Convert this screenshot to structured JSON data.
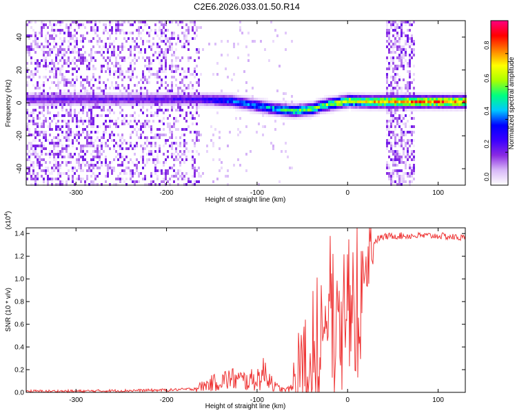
{
  "title": "C2E6.2026.033.01.50.R14",
  "chart_data": [
    {
      "type": "heatmap",
      "xlabel": "Height of straight line (km)",
      "ylabel": "Frequency (Hz)",
      "xlim": [
        -355,
        130
      ],
      "ylim": [
        -50,
        50
      ],
      "xticks": [
        -300,
        -200,
        -100,
        0,
        100
      ],
      "yticks": [
        -40,
        -20,
        0,
        20,
        40
      ],
      "colorbar": {
        "label": "Normalized spectral amplitude",
        "range": [
          0,
          1
        ],
        "ticks": [
          "0.0",
          "0.2",
          "0.4",
          "0.6",
          "0.8"
        ],
        "tick_values": [
          0,
          0.2,
          0.4,
          0.6,
          0.8
        ],
        "colors": [
          "#ffffff",
          "#d8b8f8",
          "#8a2be2",
          "#3b00ff",
          "#0000ff",
          "#00c8ff",
          "#00ff80",
          "#aaff00",
          "#ffff00",
          "#ff8000",
          "#ff0000",
          "#ff0080"
        ]
      },
      "signal_band": {
        "description_free": true,
        "noise_region_x": [
          -355,
          -165
        ],
        "clean_region_x": [
          -165,
          42
        ],
        "noise_stripe_x": [
          42,
          73
        ],
        "center_freq": [
          [
            -355,
            3
          ],
          [
            -300,
            3
          ],
          [
            -250,
            3
          ],
          [
            -200,
            3
          ],
          [
            -165,
            3
          ],
          [
            -130,
            2
          ],
          [
            -100,
            -1
          ],
          [
            -80,
            -3
          ],
          [
            -60,
            -4
          ],
          [
            -40,
            -3
          ],
          [
            -30,
            -1
          ],
          [
            -10,
            1
          ],
          [
            0,
            2
          ],
          [
            20,
            1.5
          ],
          [
            42,
            1.5
          ],
          [
            73,
            1.5
          ],
          [
            100,
            1.5
          ],
          [
            130,
            1.5
          ]
        ],
        "peak_amplitude": [
          [
            -355,
            0.25
          ],
          [
            -250,
            0.25
          ],
          [
            -165,
            0.3
          ],
          [
            -130,
            0.45
          ],
          [
            -100,
            0.5
          ],
          [
            -60,
            0.65
          ],
          [
            -30,
            0.7
          ],
          [
            0,
            0.8
          ],
          [
            42,
            0.9
          ],
          [
            73,
            0.95
          ],
          [
            130,
            0.95
          ]
        ]
      }
    },
    {
      "type": "line",
      "xlabel": "Height of straight line (km)",
      "ylabel": "SNR (10 * v/v)",
      "scale_label": "(x10",
      "scale_exp": "4",
      "scale_close": ")",
      "xlim": [
        -355,
        130
      ],
      "ylim": [
        0,
        1.45
      ],
      "xticks": [
        -300,
        -200,
        -100,
        0,
        100
      ],
      "yticks": [
        "0.0",
        "0.2",
        "0.4",
        "0.6",
        "0.8",
        "1.0",
        "1.2",
        "1.4"
      ],
      "ytick_values": [
        0,
        0.2,
        0.4,
        0.6,
        0.8,
        1.0,
        1.2,
        1.4
      ],
      "color": "#ee3333",
      "series": [
        {
          "x": [
            -355,
            -300,
            -250,
            -200,
            -170,
            -150,
            -130,
            -110,
            -100,
            -90,
            -80,
            -70,
            -60,
            -50,
            -45,
            -40,
            -35,
            -30,
            -25,
            -20,
            -15,
            -10,
            -5,
            0,
            5,
            10,
            15,
            20,
            25,
            30,
            35,
            40,
            50,
            60,
            80,
            100,
            115,
            130
          ],
          "y": [
            0.01,
            0.01,
            0.015,
            0.02,
            0.03,
            0.08,
            0.12,
            0.1,
            0.12,
            0.18,
            0.05,
            0.02,
            0.04,
            0.25,
            0.35,
            0.45,
            0.55,
            0.7,
            0.8,
            0.95,
            0.9,
            0.95,
            1.0,
            1.0,
            1.05,
            1.0,
            1.1,
            1.2,
            1.28,
            1.33,
            1.36,
            1.37,
            1.38,
            1.38,
            1.38,
            1.38,
            1.37,
            1.36
          ]
        }
      ]
    }
  ]
}
